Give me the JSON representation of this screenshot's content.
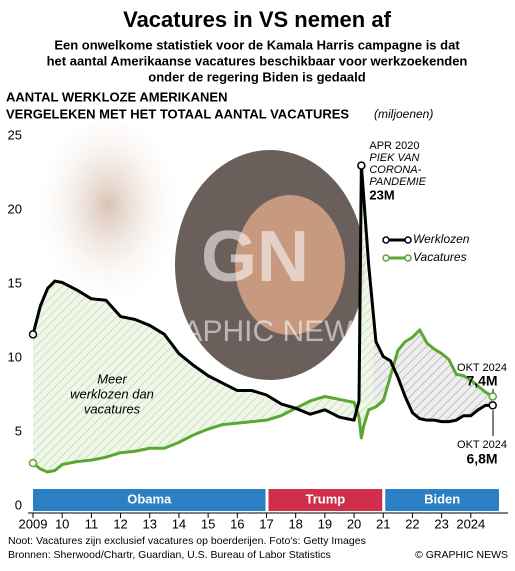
{
  "chart_data": {
    "type": "line",
    "title": "Vacatures in VS nemen af",
    "subtitle": [
      "Een onwelkome statistiek voor de Kamala Harris campagne is dat",
      "het aantal Amerikaanse vacatures beschikbaar voor werkzoekenden",
      "onder de regering Biden is gedaald"
    ],
    "axis_title": [
      "AANTAL WERKLOZE AMERIKANEN",
      "VERGELEKEN MET HET TOTAAL AANTAL VACATURES"
    ],
    "unit": "(miljoenen)",
    "x": [
      2009.0,
      2009.25,
      2009.5,
      2009.75,
      2010.0,
      2010.5,
      2011.0,
      2011.5,
      2012.0,
      2012.5,
      2013.0,
      2013.5,
      2014.0,
      2014.5,
      2015.0,
      2015.5,
      2016.0,
      2016.5,
      2017.0,
      2017.5,
      2018.0,
      2018.5,
      2019.0,
      2019.5,
      2020.0,
      2020.17,
      2020.25,
      2020.33,
      2020.5,
      2020.75,
      2021.0,
      2021.25,
      2021.5,
      2021.75,
      2022.0,
      2022.25,
      2022.5,
      2022.75,
      2023.0,
      2023.25,
      2023.5,
      2023.75,
      2024.0,
      2024.25,
      2024.5,
      2024.75
    ],
    "series": [
      {
        "name": "Werklozen",
        "color": "#000000",
        "values": [
          11.6,
          13.5,
          14.7,
          15.2,
          15.1,
          14.6,
          14.0,
          13.9,
          12.8,
          12.6,
          12.2,
          11.6,
          10.3,
          9.5,
          8.8,
          8.3,
          7.8,
          7.8,
          7.5,
          6.9,
          6.6,
          6.2,
          6.5,
          6.0,
          5.8,
          7.1,
          23.0,
          20.9,
          16.3,
          11.1,
          10.1,
          9.8,
          8.7,
          7.4,
          6.3,
          5.9,
          5.8,
          5.8,
          5.7,
          5.7,
          5.8,
          6.1,
          6.1,
          6.5,
          6.8,
          6.8
        ],
        "value_labels": [
          null,
          null,
          null,
          null,
          null,
          null,
          null,
          null,
          null,
          null,
          null,
          null,
          null,
          null,
          null,
          null,
          null,
          null,
          null,
          null,
          null,
          null,
          null,
          null,
          null,
          null,
          "23M",
          null,
          null,
          null,
          null,
          null,
          null,
          null,
          null,
          null,
          null,
          null,
          null,
          null,
          null,
          null,
          null,
          null,
          null,
          "6,8M"
        ]
      },
      {
        "name": "Vacatures",
        "color": "#5aa832",
        "values": [
          2.9,
          2.5,
          2.3,
          2.4,
          2.8,
          3.0,
          3.1,
          3.3,
          3.6,
          3.7,
          3.9,
          3.9,
          4.3,
          4.8,
          5.2,
          5.5,
          5.6,
          5.7,
          5.8,
          6.1,
          6.6,
          7.1,
          7.4,
          7.2,
          7.0,
          6.0,
          4.6,
          5.4,
          6.5,
          6.7,
          7.1,
          8.8,
          10.5,
          11.1,
          11.4,
          11.9,
          11.0,
          10.6,
          10.3,
          9.9,
          8.9,
          8.8,
          8.5,
          8.1,
          7.7,
          7.4
        ],
        "value_labels": [
          null,
          null,
          null,
          null,
          null,
          null,
          null,
          null,
          null,
          null,
          null,
          null,
          null,
          null,
          null,
          null,
          null,
          null,
          null,
          null,
          null,
          null,
          null,
          null,
          null,
          null,
          null,
          null,
          null,
          null,
          null,
          null,
          null,
          null,
          null,
          null,
          null,
          null,
          null,
          null,
          null,
          null,
          null,
          null,
          null,
          "7,4M"
        ]
      }
    ],
    "xlim": [
      2009,
      2025
    ],
    "xticks": [
      2009,
      {
        "value": 2010,
        "label": "10"
      },
      {
        "value": 2011,
        "label": "11"
      },
      {
        "value": 2012,
        "label": "12"
      },
      {
        "value": 2013,
        "label": "13"
      },
      {
        "value": 2014,
        "label": "14"
      },
      {
        "value": 2015,
        "label": "15"
      },
      {
        "value": 2016,
        "label": "16"
      },
      {
        "value": 2017,
        "label": "17"
      },
      {
        "value": 2018,
        "label": "18"
      },
      {
        "value": 2019,
        "label": "19"
      },
      {
        "value": 2020,
        "label": "20"
      },
      {
        "value": 2021,
        "label": "21"
      },
      {
        "value": 2022,
        "label": "22"
      },
      {
        "value": 2023,
        "label": "23"
      },
      2024
    ],
    "ylim": [
      0,
      25
    ],
    "yticks": [
      0,
      5,
      10,
      15,
      20,
      25
    ],
    "grid": false,
    "eras": [
      {
        "name": "Obama",
        "start": 2009,
        "end": 2017,
        "color": "#2b7fc4"
      },
      {
        "name": "Trump",
        "start": 2017,
        "end": 2021,
        "color": "#cf2f4b"
      },
      {
        "name": "Biden",
        "start": 2021,
        "end": 2025,
        "color": "#2b7fc4"
      }
    ],
    "peak_note": [
      "APR 2020",
      "PIEK VAN",
      "CORONA-",
      "PANDEMIE"
    ],
    "end_notes": [
      "OKT 2024",
      "OKT 2024"
    ],
    "gap_note": [
      "Meer",
      "werklozen dan",
      "vacatures"
    ],
    "watermark": [
      "GN",
      "GRAPHIC NEWS"
    ],
    "footnotes": [
      "Noot: Vacatures zijn exclusief vacatures op boerderijen. Foto's: Getty Images",
      "Bronnen: Sherwood/Chartr, Guardian, U.S. Bureau of Labor Statistics"
    ],
    "credit": "© GRAPHIC NEWS"
  }
}
